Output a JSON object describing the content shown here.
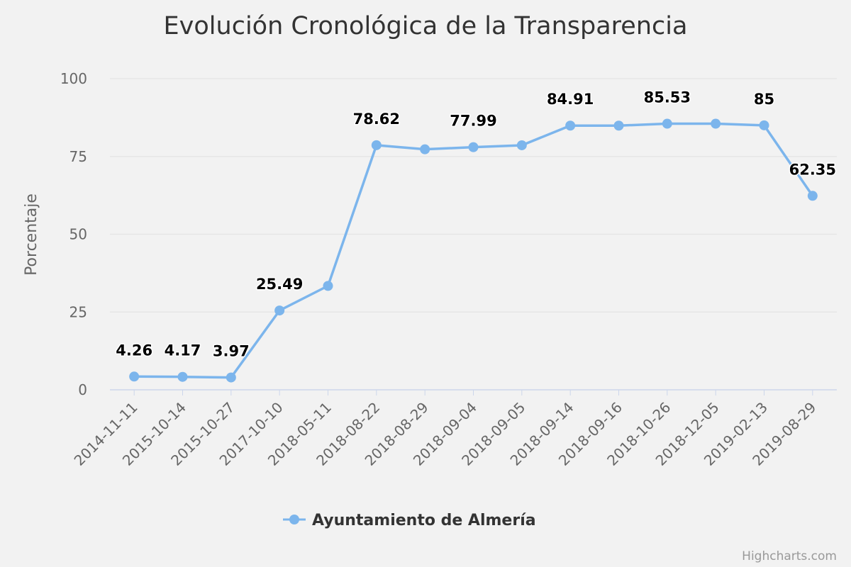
{
  "chart_data": {
    "type": "line",
    "title": "Evolución Cronológica de la Transparencia",
    "ylabel": "Porcentaje",
    "xlabel": "",
    "ylim": [
      0,
      100
    ],
    "yticks": [
      0,
      25,
      50,
      75,
      100
    ],
    "grid": true,
    "legend_position": "bottom-center",
    "categories": [
      "2014-11-11",
      "2015-10-14",
      "2015-10-27",
      "2017-10-10",
      "2018-05-11",
      "2018-08-22",
      "2018-08-29",
      "2018-09-04",
      "2018-09-05",
      "2018-09-14",
      "2018-09-16",
      "2018-10-26",
      "2018-12-05",
      "2019-02-13",
      "2019-08-29"
    ],
    "series": [
      {
        "name": "Ayuntamiento de Almería",
        "color": "#7cb5ec",
        "values": [
          4.26,
          4.17,
          3.97,
          25.49,
          33.4,
          78.62,
          77.3,
          77.99,
          78.6,
          84.91,
          84.91,
          85.53,
          85.53,
          85,
          62.35
        ],
        "data_labels": [
          "4.26",
          "4.17",
          "3.97",
          "25.49",
          "",
          "78.62",
          "",
          "77.99",
          "",
          "84.91",
          "",
          "85.53",
          "",
          "85",
          "62.35"
        ]
      }
    ]
  },
  "credits": "Highcharts.com"
}
